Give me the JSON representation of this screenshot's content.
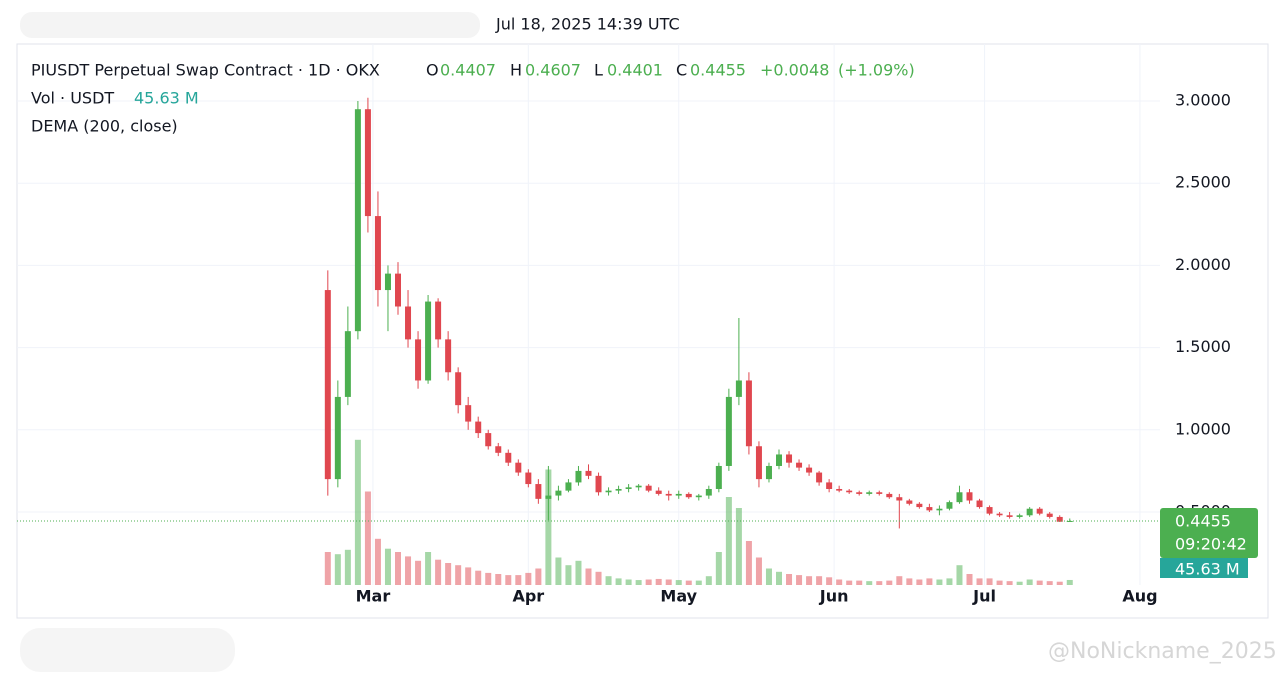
{
  "header": {
    "timestamp": "Jul 18, 2025 14:39 UTC"
  },
  "legend": {
    "symbol": "PIUSDT Perpetual Swap Contract · 1D · OKX",
    "o": "O",
    "h": "H",
    "l": "L",
    "c": "C",
    "change": "+0.0048",
    "change_pct": "(+1.09%)",
    "vol_title": "Vol · USDT",
    "vol_value": "45.63 M",
    "indicator": "DEMA (200, close)"
  },
  "price_tag": {
    "countdown": "09:20:42"
  },
  "watermark": "@NoNickname_2025",
  "chart_data": {
    "type": "candlestick",
    "up_color": "#4caf50",
    "down_color": "#e0474f",
    "xlim": [
      -71,
      157
    ],
    "xticks": [
      {
        "value": 0,
        "label": "Mar"
      },
      {
        "value": 31,
        "label": "Apr"
      },
      {
        "value": 61,
        "label": "May"
      },
      {
        "value": 92,
        "label": "Jun"
      },
      {
        "value": 122,
        "label": "Jul"
      },
      {
        "value": 153,
        "label": "Aug"
      }
    ],
    "ylim": [
      0.056,
      3.371
    ],
    "yticks": [
      {
        "value": 0.5,
        "label": "0.5000"
      },
      {
        "value": 1,
        "label": "1.0000"
      },
      {
        "value": 1.5,
        "label": "1.5000"
      },
      {
        "value": 2,
        "label": "2.0000"
      },
      {
        "value": 2.5,
        "label": "2.5000"
      },
      {
        "value": 3,
        "label": "3.0000"
      }
    ],
    "grid": true,
    "volume_lim": [
      0,
      1500
    ],
    "x": [
      -9,
      -7,
      -5,
      -3,
      -1,
      1,
      3,
      5,
      7,
      9,
      11,
      13,
      15,
      17,
      19,
      21,
      23,
      25,
      27,
      29,
      31,
      33,
      35,
      37,
      39,
      41,
      43,
      45,
      47,
      49,
      51,
      53,
      55,
      57,
      59,
      61,
      63,
      65,
      67,
      69,
      71,
      73,
      75,
      77,
      79,
      81,
      83,
      85,
      87,
      89,
      91,
      93,
      95,
      97,
      99,
      101,
      103,
      105,
      107,
      109,
      111,
      113,
      115,
      117,
      119,
      121,
      123,
      125,
      127,
      129,
      131,
      133,
      135,
      137,
      139
    ],
    "open": [
      1.85,
      0.7,
      1.2,
      1.6,
      2.95,
      2.3,
      1.85,
      1.95,
      1.75,
      1.55,
      1.3,
      1.78,
      1.55,
      1.35,
      1.15,
      1.05,
      0.98,
      0.9,
      0.86,
      0.8,
      0.74,
      0.67,
      0.58,
      0.6,
      0.63,
      0.68,
      0.75,
      0.72,
      0.62,
      0.63,
      0.64,
      0.65,
      0.66,
      0.63,
      0.61,
      0.6,
      0.61,
      0.59,
      0.6,
      0.64,
      0.78,
      1.2,
      1.3,
      0.9,
      0.7,
      0.78,
      0.85,
      0.8,
      0.77,
      0.74,
      0.68,
      0.64,
      0.63,
      0.62,
      0.61,
      0.62,
      0.61,
      0.59,
      0.57,
      0.55,
      0.53,
      0.51,
      0.52,
      0.56,
      0.62,
      0.57,
      0.53,
      0.49,
      0.48,
      0.47,
      0.48,
      0.52,
      0.49,
      0.47,
      0.4407
    ],
    "high": [
      1.97,
      1.3,
      1.75,
      3.0,
      3.02,
      2.45,
      2.0,
      2.02,
      1.85,
      1.6,
      1.82,
      1.8,
      1.6,
      1.38,
      1.2,
      1.08,
      1.0,
      0.92,
      0.88,
      0.82,
      0.76,
      0.7,
      0.78,
      0.66,
      0.7,
      0.78,
      0.79,
      0.74,
      0.65,
      0.66,
      0.67,
      0.67,
      0.67,
      0.65,
      0.63,
      0.63,
      0.62,
      0.61,
      0.66,
      0.8,
      1.25,
      1.68,
      1.35,
      0.93,
      0.8,
      0.88,
      0.87,
      0.82,
      0.79,
      0.75,
      0.7,
      0.66,
      0.64,
      0.63,
      0.63,
      0.63,
      0.62,
      0.61,
      0.58,
      0.56,
      0.55,
      0.54,
      0.57,
      0.66,
      0.64,
      0.58,
      0.54,
      0.5,
      0.5,
      0.49,
      0.53,
      0.53,
      0.5,
      0.48,
      0.4607
    ],
    "low": [
      0.6,
      0.65,
      1.15,
      1.55,
      2.2,
      1.75,
      1.6,
      1.7,
      1.5,
      1.25,
      1.28,
      1.5,
      1.3,
      1.1,
      1.0,
      0.95,
      0.88,
      0.84,
      0.78,
      0.72,
      0.65,
      0.55,
      0.45,
      0.57,
      0.62,
      0.66,
      0.7,
      0.6,
      0.6,
      0.61,
      0.62,
      0.63,
      0.62,
      0.6,
      0.57,
      0.58,
      0.58,
      0.57,
      0.58,
      0.62,
      0.75,
      1.15,
      0.85,
      0.65,
      0.68,
      0.76,
      0.77,
      0.75,
      0.72,
      0.66,
      0.62,
      0.62,
      0.61,
      0.6,
      0.6,
      0.6,
      0.58,
      0.4,
      0.54,
      0.52,
      0.5,
      0.48,
      0.51,
      0.55,
      0.55,
      0.52,
      0.48,
      0.47,
      0.46,
      0.46,
      0.47,
      0.48,
      0.46,
      0.44,
      0.4401
    ],
    "close": [
      0.7,
      1.2,
      1.6,
      2.95,
      2.3,
      1.85,
      1.95,
      1.75,
      1.55,
      1.3,
      1.78,
      1.55,
      1.35,
      1.15,
      1.05,
      0.98,
      0.9,
      0.86,
      0.8,
      0.74,
      0.67,
      0.58,
      0.6,
      0.63,
      0.68,
      0.75,
      0.72,
      0.62,
      0.63,
      0.64,
      0.65,
      0.66,
      0.63,
      0.61,
      0.6,
      0.61,
      0.59,
      0.6,
      0.64,
      0.78,
      1.2,
      1.3,
      0.9,
      0.7,
      0.78,
      0.85,
      0.8,
      0.77,
      0.74,
      0.68,
      0.64,
      0.63,
      0.62,
      0.61,
      0.62,
      0.61,
      0.59,
      0.57,
      0.55,
      0.53,
      0.51,
      0.52,
      0.56,
      0.62,
      0.57,
      0.53,
      0.49,
      0.48,
      0.47,
      0.48,
      0.52,
      0.49,
      0.47,
      0.4407,
      0.4455
    ],
    "volume": [
      300,
      280,
      320,
      1320,
      850,
      420,
      330,
      300,
      260,
      220,
      300,
      230,
      200,
      180,
      160,
      130,
      110,
      100,
      90,
      90,
      110,
      150,
      1050,
      250,
      180,
      220,
      150,
      120,
      80,
      60,
      50,
      45,
      50,
      55,
      50,
      45,
      40,
      40,
      80,
      300,
      800,
      700,
      400,
      250,
      150,
      120,
      100,
      90,
      80,
      80,
      70,
      50,
      40,
      40,
      35,
      35,
      40,
      80,
      60,
      50,
      60,
      50,
      60,
      180,
      100,
      60,
      60,
      40,
      35,
      30,
      50,
      40,
      35,
      30,
      45.63
    ]
  }
}
